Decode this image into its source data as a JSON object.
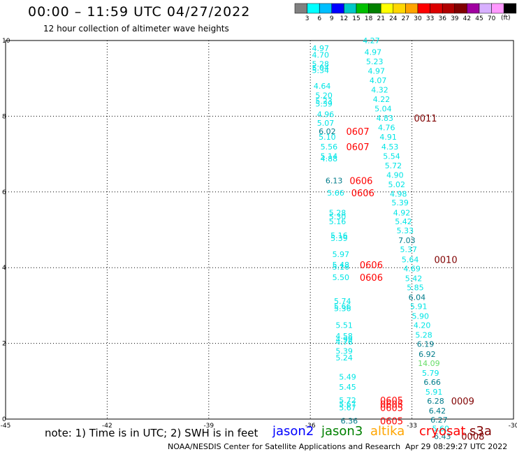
{
  "header": {
    "title": "00:00 – 11:59 UTC 04/27/2022",
    "subtitle": "12 hour collection of altimeter wave heights"
  },
  "colorbar": {
    "labels": [
      "3",
      "6",
      "9",
      "12",
      "15",
      "18",
      "21",
      "24",
      "27",
      "30",
      "33",
      "36",
      "39",
      "42",
      "45",
      "70"
    ],
    "unit": "(ft)",
    "colors": [
      "#808080",
      "#00ffff",
      "#00bfff",
      "#0000ff",
      "#00c8c8",
      "#00c000",
      "#008000",
      "#ffff00",
      "#ffd700",
      "#ffa500",
      "#ff0000",
      "#dc0000",
      "#b00000",
      "#800000",
      "#a000a0",
      "#d8b0ff",
      "#ff99ff",
      "#000000"
    ]
  },
  "note": "note:  1) Time is in UTC;  2) SWH is in feet",
  "satellites": [
    {
      "name": "jason2",
      "color": "#0000ff"
    },
    {
      "name": "jason3",
      "color": "#008000"
    },
    {
      "name": "altika",
      "color": "#ffa500"
    },
    {
      "name": "cryosat",
      "color": "#ff0000"
    },
    {
      "name": "s3a",
      "color": "#800000"
    }
  ],
  "footer": {
    "source": "NOAA/NESDIS Center for Satellite Applications and Research",
    "timestamp": "Apr 29 08:29:27 UTC 2022"
  },
  "chart_data": {
    "type": "scatter",
    "xlim": [
      -45,
      -30
    ],
    "ylim": [
      0,
      10
    ],
    "x_ticks": [
      -45,
      -42,
      -39,
      -36,
      -33,
      -30
    ],
    "y_ticks": [
      0,
      2,
      4,
      6,
      8,
      10
    ],
    "grid": true,
    "points": [
      {
        "x": -35.7,
        "y": 9.8,
        "label": "4.97",
        "color": "#00e5e5"
      },
      {
        "x": -35.7,
        "y": 9.62,
        "label": "4.70",
        "color": "#00e5e5"
      },
      {
        "x": -35.7,
        "y": 9.38,
        "label": "5.28",
        "color": "#00e5e5"
      },
      {
        "x": -35.7,
        "y": 9.28,
        "label": "5.04",
        "color": "#00e5e5"
      },
      {
        "x": -35.7,
        "y": 9.22,
        "label": "5.34",
        "color": "#00e5e5"
      },
      {
        "x": -35.65,
        "y": 8.8,
        "label": "4.64",
        "color": "#00e5e5"
      },
      {
        "x": -35.6,
        "y": 8.55,
        "label": "5.20",
        "color": "#00e5e5"
      },
      {
        "x": -35.6,
        "y": 8.4,
        "label": "5.23",
        "color": "#00e5e5"
      },
      {
        "x": -35.6,
        "y": 8.33,
        "label": "5.39",
        "color": "#00e5e5"
      },
      {
        "x": -35.55,
        "y": 8.05,
        "label": "4.96",
        "color": "#00e5e5"
      },
      {
        "x": -35.55,
        "y": 7.82,
        "label": "5.07",
        "color": "#00e5e5"
      },
      {
        "x": -35.5,
        "y": 7.6,
        "label": "6.02",
        "color": "#007b8a"
      },
      {
        "x": -35.5,
        "y": 7.45,
        "label": "5.10",
        "color": "#00e5e5"
      },
      {
        "x": -35.45,
        "y": 7.2,
        "label": "5.56",
        "color": "#00e5e5"
      },
      {
        "x": -35.45,
        "y": 6.95,
        "label": "5.14",
        "color": "#00e5e5"
      },
      {
        "x": -35.45,
        "y": 6.88,
        "label": "4.88",
        "color": "#00e5e5"
      },
      {
        "x": -35.3,
        "y": 6.3,
        "label": "6.13",
        "color": "#007b8a"
      },
      {
        "x": -35.25,
        "y": 5.98,
        "label": "5.66",
        "color": "#00e5e5"
      },
      {
        "x": -35.2,
        "y": 5.45,
        "label": "5.28",
        "color": "#00e5e5"
      },
      {
        "x": -35.2,
        "y": 5.35,
        "label": "5.30",
        "color": "#00e5e5"
      },
      {
        "x": -35.2,
        "y": 5.22,
        "label": "5.16",
        "color": "#00e5e5"
      },
      {
        "x": -35.15,
        "y": 4.85,
        "label": "5.16",
        "color": "#00e5e5"
      },
      {
        "x": -35.15,
        "y": 4.78,
        "label": "5.39",
        "color": "#00e5e5"
      },
      {
        "x": -35.1,
        "y": 4.35,
        "label": "5.97",
        "color": "#00e5e5"
      },
      {
        "x": -35.1,
        "y": 4.08,
        "label": "5.48",
        "color": "#00e5e5"
      },
      {
        "x": -35.1,
        "y": 4.02,
        "label": "5.16",
        "color": "#00e5e5"
      },
      {
        "x": -35.1,
        "y": 3.75,
        "label": "5.50",
        "color": "#00e5e5"
      },
      {
        "x": -35.05,
        "y": 3.12,
        "label": "5.74",
        "color": "#00e5e5"
      },
      {
        "x": -35.05,
        "y": 2.98,
        "label": "5.66",
        "color": "#00e5e5"
      },
      {
        "x": -35.05,
        "y": 2.92,
        "label": "5.36",
        "color": "#00e5e5"
      },
      {
        "x": -35.0,
        "y": 2.48,
        "label": "5.51",
        "color": "#00e5e5"
      },
      {
        "x": -35.0,
        "y": 2.2,
        "label": "4.58",
        "color": "#00e5e5"
      },
      {
        "x": -35.0,
        "y": 2.1,
        "label": "4.99",
        "color": "#00e5e5"
      },
      {
        "x": -35.0,
        "y": 2.04,
        "label": "4.76",
        "color": "#00e5e5"
      },
      {
        "x": -35.0,
        "y": 1.8,
        "label": "5.39",
        "color": "#00e5e5"
      },
      {
        "x": -35.0,
        "y": 1.62,
        "label": "5.24",
        "color": "#00e5e5"
      },
      {
        "x": -34.9,
        "y": 1.12,
        "label": "5.49",
        "color": "#00e5e5"
      },
      {
        "x": -34.9,
        "y": 0.85,
        "label": "5.45",
        "color": "#00e5e5"
      },
      {
        "x": -34.9,
        "y": 0.5,
        "label": "5.72",
        "color": "#00e5e5"
      },
      {
        "x": -34.9,
        "y": 0.4,
        "label": "5.67",
        "color": "#00e5e5"
      },
      {
        "x": -34.9,
        "y": 0.3,
        "label": "5.67",
        "color": "#00e5e5"
      },
      {
        "x": -34.85,
        "y": -0.05,
        "label": "6.36",
        "color": "#007b8a"
      },
      {
        "x": -34.2,
        "y": 10.0,
        "label": "4.27",
        "color": "#00e5e5"
      },
      {
        "x": -34.15,
        "y": 9.7,
        "label": "4.97",
        "color": "#00e5e5"
      },
      {
        "x": -34.1,
        "y": 9.45,
        "label": "5.23",
        "color": "#00e5e5"
      },
      {
        "x": -34.05,
        "y": 9.2,
        "label": "4.97",
        "color": "#00e5e5"
      },
      {
        "x": -34.0,
        "y": 8.95,
        "label": "4.07",
        "color": "#00e5e5"
      },
      {
        "x": -33.95,
        "y": 8.7,
        "label": "4.32",
        "color": "#00e5e5"
      },
      {
        "x": -33.9,
        "y": 8.45,
        "label": "4.22",
        "color": "#00e5e5"
      },
      {
        "x": -33.85,
        "y": 8.2,
        "label": "5.04",
        "color": "#00e5e5"
      },
      {
        "x": -33.8,
        "y": 7.95,
        "label": "4.83",
        "color": "#00e5e5"
      },
      {
        "x": -33.75,
        "y": 7.7,
        "label": "4.76",
        "color": "#00e5e5"
      },
      {
        "x": -33.7,
        "y": 7.45,
        "label": "4.91",
        "color": "#00e5e5"
      },
      {
        "x": -33.65,
        "y": 7.2,
        "label": "4.53",
        "color": "#00e5e5"
      },
      {
        "x": -33.6,
        "y": 6.95,
        "label": "5.54",
        "color": "#00e5e5"
      },
      {
        "x": -33.55,
        "y": 6.7,
        "label": "5.72",
        "color": "#00e5e5"
      },
      {
        "x": -33.5,
        "y": 6.45,
        "label": "4.90",
        "color": "#00e5e5"
      },
      {
        "x": -33.45,
        "y": 6.2,
        "label": "5.02",
        "color": "#00e5e5"
      },
      {
        "x": -33.4,
        "y": 5.95,
        "label": "4.98",
        "color": "#00e5e5"
      },
      {
        "x": -33.35,
        "y": 5.72,
        "label": "5.39",
        "color": "#00e5e5"
      },
      {
        "x": -33.3,
        "y": 5.45,
        "label": "4.92",
        "color": "#00e5e5"
      },
      {
        "x": -33.25,
        "y": 5.22,
        "label": "5.42",
        "color": "#00e5e5"
      },
      {
        "x": -33.2,
        "y": 4.98,
        "label": "5.33",
        "color": "#00e5e5"
      },
      {
        "x": -33.15,
        "y": 4.72,
        "label": "7.03",
        "color": "#007b8a"
      },
      {
        "x": -33.1,
        "y": 4.48,
        "label": "5.37",
        "color": "#00e5e5"
      },
      {
        "x": -33.05,
        "y": 4.22,
        "label": "5.64",
        "color": "#00e5e5"
      },
      {
        "x": -33.0,
        "y": 3.98,
        "label": "4.69",
        "color": "#00e5e5"
      },
      {
        "x": -32.95,
        "y": 3.72,
        "label": "5.42",
        "color": "#00e5e5"
      },
      {
        "x": -32.9,
        "y": 3.48,
        "label": "5.85",
        "color": "#00e5e5"
      },
      {
        "x": -32.85,
        "y": 3.22,
        "label": "6.04",
        "color": "#007b8a"
      },
      {
        "x": -32.8,
        "y": 2.98,
        "label": "5.91",
        "color": "#00e5e5"
      },
      {
        "x": -32.75,
        "y": 2.72,
        "label": "5.90",
        "color": "#00e5e5"
      },
      {
        "x": -32.7,
        "y": 2.48,
        "label": "4.20",
        "color": "#00e5e5"
      },
      {
        "x": -32.65,
        "y": 2.22,
        "label": "5.28",
        "color": "#00e5e5"
      },
      {
        "x": -32.6,
        "y": 1.98,
        "label": "6.19",
        "color": "#007b8a"
      },
      {
        "x": -32.55,
        "y": 1.72,
        "label": "6.92",
        "color": "#007b8a"
      },
      {
        "x": -32.5,
        "y": 1.48,
        "label": "14.09",
        "color": "#66dd66"
      },
      {
        "x": -32.45,
        "y": 1.22,
        "label": "5.79",
        "color": "#00e5e5"
      },
      {
        "x": -32.4,
        "y": 0.98,
        "label": "6.66",
        "color": "#007b8a"
      },
      {
        "x": -32.35,
        "y": 0.72,
        "label": "5.91",
        "color": "#00e5e5"
      },
      {
        "x": -32.3,
        "y": 0.48,
        "label": "6.28",
        "color": "#007b8a"
      },
      {
        "x": -32.25,
        "y": 0.22,
        "label": "6.42",
        "color": "#007b8a"
      },
      {
        "x": -32.2,
        "y": -0.02,
        "label": "6.27",
        "color": "#007b8a"
      },
      {
        "x": -32.15,
        "y": -0.25,
        "label": "5.60",
        "color": "#00e5e5"
      },
      {
        "x": -32.1,
        "y": -0.45,
        "label": "6.43",
        "color": "#007b8a"
      }
    ],
    "time_tags": [
      {
        "x": -34.6,
        "y": 7.6,
        "label": "0607",
        "color": "#ff0000"
      },
      {
        "x": -34.6,
        "y": 7.2,
        "label": "0607",
        "color": "#ff0000"
      },
      {
        "x": -34.5,
        "y": 6.3,
        "label": "0606",
        "color": "#ff0000"
      },
      {
        "x": -34.45,
        "y": 5.98,
        "label": "0606",
        "color": "#ff0000"
      },
      {
        "x": -34.2,
        "y": 4.08,
        "label": "0606",
        "color": "#ff0000"
      },
      {
        "x": -34.2,
        "y": 3.75,
        "label": "0606",
        "color": "#ff0000"
      },
      {
        "x": -33.6,
        "y": 0.5,
        "label": "0605",
        "color": "#ff0000"
      },
      {
        "x": -33.6,
        "y": 0.4,
        "label": "0605",
        "color": "#ff0000"
      },
      {
        "x": -33.6,
        "y": 0.3,
        "label": "0605",
        "color": "#ff0000"
      },
      {
        "x": -33.6,
        "y": -0.05,
        "label": "0605",
        "color": "#ff0000"
      },
      {
        "x": -32.6,
        "y": 7.95,
        "label": "0011",
        "color": "#800000"
      },
      {
        "x": -32.0,
        "y": 4.22,
        "label": "0010",
        "color": "#800000"
      },
      {
        "x": -31.5,
        "y": 0.48,
        "label": "0009",
        "color": "#800000"
      },
      {
        "x": -31.2,
        "y": -0.45,
        "label": "0008",
        "color": "#800000"
      }
    ]
  }
}
